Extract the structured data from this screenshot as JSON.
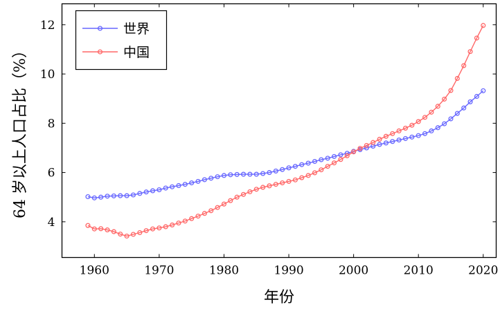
{
  "chart_data": {
    "type": "line",
    "xlabel": "年份",
    "ylabel": "64 岁以上人口占比（%）",
    "xlim": [
      1955,
      2022
    ],
    "ylim": [
      2.55,
      12.85
    ],
    "xticks": [
      1960,
      1970,
      1980,
      1990,
      2000,
      2010,
      2020
    ],
    "yticks": [
      4,
      6,
      8,
      10,
      12
    ],
    "legend_position": "top-left",
    "grid": false,
    "x": [
      1959,
      1960,
      1961,
      1962,
      1963,
      1964,
      1965,
      1966,
      1967,
      1968,
      1969,
      1970,
      1971,
      1972,
      1973,
      1974,
      1975,
      1976,
      1977,
      1978,
      1979,
      1980,
      1981,
      1982,
      1983,
      1984,
      1985,
      1986,
      1987,
      1988,
      1989,
      1990,
      1991,
      1992,
      1993,
      1994,
      1995,
      1996,
      1997,
      1998,
      1999,
      2000,
      2001,
      2002,
      2003,
      2004,
      2005,
      2006,
      2007,
      2008,
      2009,
      2010,
      2011,
      2012,
      2013,
      2014,
      2015,
      2016,
      2017,
      2018,
      2019,
      2020
    ],
    "series": [
      {
        "name": "世界",
        "color": "#6666ff",
        "values": [
          5.02,
          4.97,
          5.0,
          5.04,
          5.05,
          5.06,
          5.06,
          5.09,
          5.15,
          5.21,
          5.26,
          5.3,
          5.37,
          5.42,
          5.47,
          5.52,
          5.58,
          5.64,
          5.71,
          5.77,
          5.83,
          5.88,
          5.91,
          5.92,
          5.93,
          5.93,
          5.93,
          5.96,
          6.0,
          6.06,
          6.12,
          6.19,
          6.25,
          6.32,
          6.38,
          6.45,
          6.52,
          6.58,
          6.65,
          6.72,
          6.78,
          6.86,
          6.93,
          7.0,
          7.07,
          7.14,
          7.2,
          7.26,
          7.32,
          7.38,
          7.44,
          7.5,
          7.58,
          7.69,
          7.82,
          7.98,
          8.18,
          8.4,
          8.62,
          8.87,
          9.09,
          9.32
        ]
      },
      {
        "name": "中国",
        "color": "#ff6666",
        "values": [
          3.85,
          3.71,
          3.72,
          3.67,
          3.6,
          3.5,
          3.42,
          3.49,
          3.56,
          3.64,
          3.71,
          3.75,
          3.8,
          3.87,
          3.95,
          4.03,
          4.13,
          4.23,
          4.34,
          4.45,
          4.58,
          4.72,
          4.86,
          5.0,
          5.11,
          5.22,
          5.32,
          5.4,
          5.46,
          5.52,
          5.58,
          5.64,
          5.7,
          5.79,
          5.88,
          5.99,
          6.11,
          6.25,
          6.39,
          6.53,
          6.68,
          6.84,
          6.98,
          7.1,
          7.22,
          7.35,
          7.47,
          7.58,
          7.69,
          7.8,
          7.92,
          8.07,
          8.24,
          8.45,
          8.69,
          8.98,
          9.33,
          9.82,
          10.34,
          10.91,
          11.46,
          11.97
        ]
      }
    ]
  }
}
